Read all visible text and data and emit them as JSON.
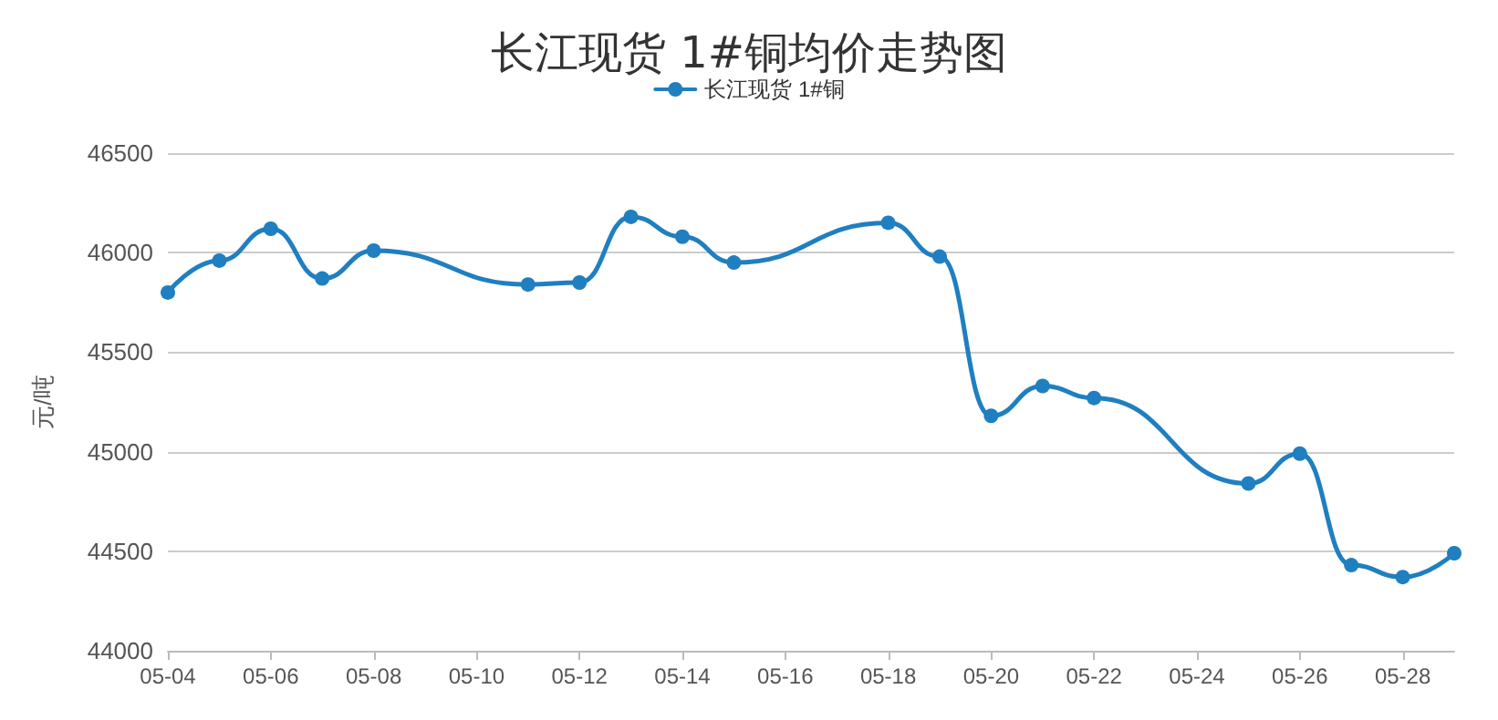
{
  "chart_data": {
    "type": "line",
    "title": "长江现货 1#铜均价走势图",
    "ylabel": "元/吨",
    "x": [
      "--05-04",
      "--05-05",
      "--05-06",
      "--05-07",
      "--05-08",
      "--05-11",
      "--05-12",
      "--05-13",
      "--05-14",
      "--05-15",
      "--05-18",
      "--05-19",
      "--05-20",
      "--05-21",
      "--05-22",
      "--05-25",
      "--05-26",
      "--05-27",
      "--05-28",
      "--05-29"
    ],
    "series": [
      {
        "name": "长江现货 1#铜",
        "color": "#1f7fc0",
        "values": [
          45800,
          45960,
          46120,
          45870,
          46010,
          45840,
          45850,
          46180,
          46080,
          45950,
          46150,
          45980,
          45180,
          45330,
          45270,
          44840,
          44990,
          44430,
          44370,
          44490
        ]
      }
    ],
    "xlim": [
      "--05-04",
      "--05-29"
    ],
    "xticks": [
      {
        "value": "--05-04",
        "label": "05-04"
      },
      {
        "value": "--05-06",
        "label": "05-06"
      },
      {
        "value": "--05-08",
        "label": "05-08"
      },
      {
        "value": "--05-10",
        "label": "05-10"
      },
      {
        "value": "--05-12",
        "label": "05-12"
      },
      {
        "value": "--05-14",
        "label": "05-14"
      },
      {
        "value": "--05-16",
        "label": "05-16"
      },
      {
        "value": "--05-18",
        "label": "05-18"
      },
      {
        "value": "--05-20",
        "label": "05-20"
      },
      {
        "value": "--05-22",
        "label": "05-22"
      },
      {
        "value": "--05-24",
        "label": "05-24"
      },
      {
        "value": "--05-26",
        "label": "05-26"
      },
      {
        "value": "--05-28",
        "label": "05-28"
      }
    ],
    "ylim": [
      44000,
      46500
    ],
    "yticks": [
      44000,
      44500,
      45000,
      45500,
      46000,
      46500
    ],
    "grid": "y",
    "legend": "top",
    "marker": "circle",
    "line_style": "solid"
  }
}
